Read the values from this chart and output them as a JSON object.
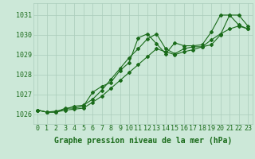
{
  "x": [
    0,
    1,
    2,
    3,
    4,
    5,
    6,
    7,
    8,
    9,
    10,
    11,
    12,
    13,
    14,
    15,
    16,
    17,
    18,
    19,
    20,
    21,
    22,
    23
  ],
  "line1": [
    1026.2,
    1026.1,
    1026.1,
    1026.3,
    1026.3,
    1026.4,
    1027.1,
    1027.4,
    1027.6,
    1028.2,
    1028.6,
    1029.85,
    1030.05,
    1029.55,
    1029.05,
    1029.6,
    1029.45,
    1029.45,
    1029.5,
    1030.15,
    1031.0,
    1031.0,
    1030.5,
    1030.3
  ],
  "line2": [
    1026.2,
    1026.1,
    1026.15,
    1026.25,
    1026.4,
    1026.45,
    1026.75,
    1027.2,
    1027.75,
    1028.3,
    1028.85,
    1029.3,
    1029.8,
    1030.05,
    1029.3,
    1029.05,
    1029.3,
    1029.4,
    1029.4,
    1029.5,
    1030.0,
    1031.0,
    1031.0,
    1030.45
  ],
  "line3": [
    1026.2,
    1026.1,
    1026.1,
    1026.2,
    1026.25,
    1026.3,
    1026.6,
    1026.9,
    1027.3,
    1027.7,
    1028.1,
    1028.5,
    1028.9,
    1029.3,
    1029.15,
    1029.0,
    1029.15,
    1029.25,
    1029.4,
    1029.75,
    1030.05,
    1030.3,
    1030.45,
    1030.3
  ],
  "line_color": "#1a6b1a",
  "bg_color": "#cce8d8",
  "grid_color": "#aaccbb",
  "ylabel_ticks": [
    1026,
    1027,
    1028,
    1029,
    1030,
    1031
  ],
  "xlabel": "Graphe pression niveau de la mer (hPa)",
  "ylim": [
    1025.5,
    1031.6
  ],
  "xlim": [
    -0.5,
    23.5
  ],
  "xlabel_fontsize": 7,
  "tick_fontsize": 6,
  "marker": "D",
  "markersize": 2.0,
  "linewidth": 0.8
}
